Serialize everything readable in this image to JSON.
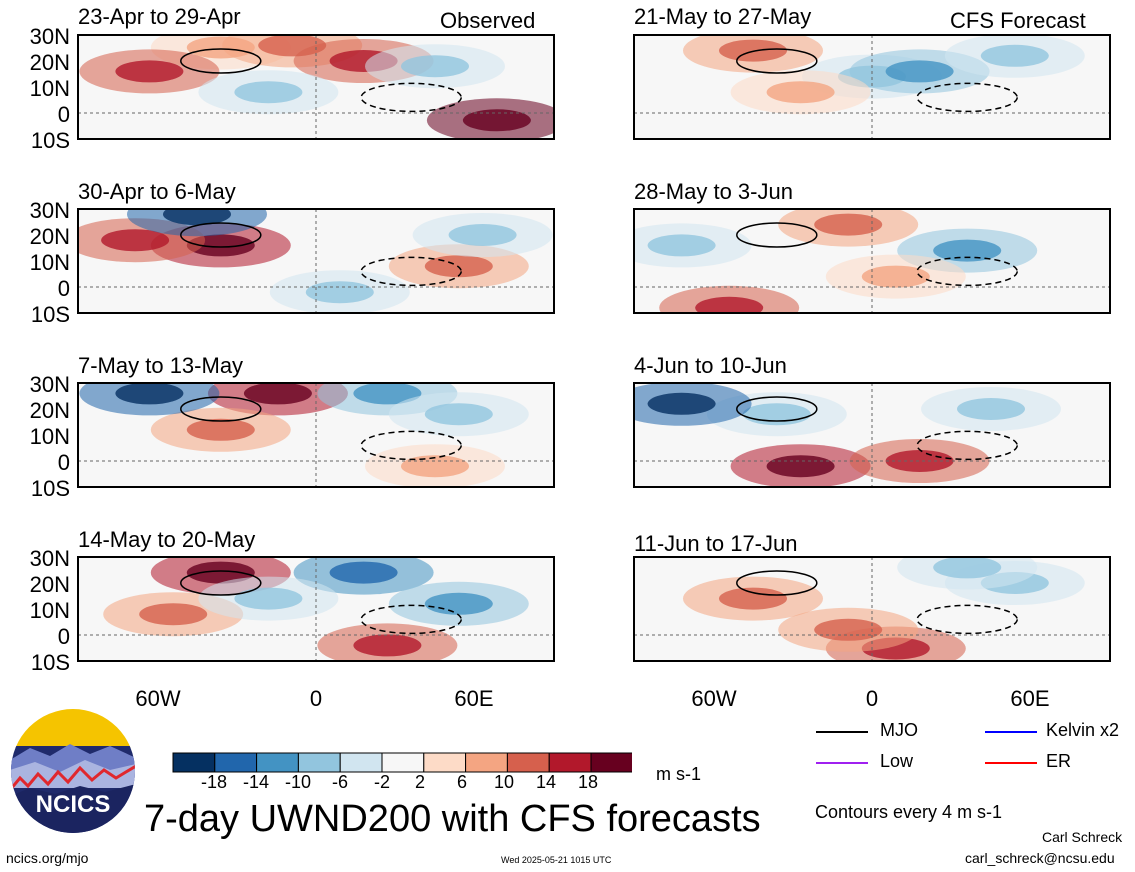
{
  "chart_data": {
    "type": "heatmap",
    "variable": "7-day UWND200",
    "title": "7-day UWND200 with CFS forecasts",
    "units": "m s-1",
    "contour_note": "Contours every 4 m s-1",
    "lat_ticks": [
      "30N",
      "20N",
      "10N",
      "0",
      "10S"
    ],
    "lon_ticks": [
      "60W",
      "0",
      "60E"
    ],
    "lat_range": [
      -10,
      30
    ],
    "lon_range": [
      -90,
      90
    ],
    "colorbar_ticks": [
      "-18",
      "-14",
      "-10",
      "-6",
      "-2",
      "2",
      "6",
      "10",
      "14",
      "18"
    ],
    "colorbar_colors": [
      "#053061",
      "#2166ac",
      "#4393c3",
      "#92c5de",
      "#d1e5f0",
      "#f7f7f7",
      "#fddbc7",
      "#f4a582",
      "#d6604d",
      "#b2182b",
      "#67001f"
    ],
    "columns": [
      {
        "label": "Observed",
        "panels": [
          "23-Apr to 29-Apr",
          "30-Apr to 6-May",
          "7-May to 13-May",
          "14-May to 20-May"
        ]
      },
      {
        "label": "CFS Forecast",
        "panels": [
          "21-May to 27-May",
          "28-May to 3-Jun",
          "4-Jun to 10-Jun",
          "11-Jun to 17-Jun"
        ]
      }
    ],
    "legend": [
      {
        "label": "MJO",
        "color": "#000000"
      },
      {
        "label": "Kelvin x2",
        "color": "#0000ff"
      },
      {
        "label": "Low",
        "color": "#a020f0"
      },
      {
        "label": "ER",
        "color": "#ff0000"
      }
    ]
  },
  "logo_text": "NCICS",
  "footer": {
    "url": "ncics.org/mjo",
    "timestamp": "Wed 2025-05-21 1015 UTC",
    "author": "Carl Schreck",
    "email": "carl_schreck@ncsu.edu"
  }
}
